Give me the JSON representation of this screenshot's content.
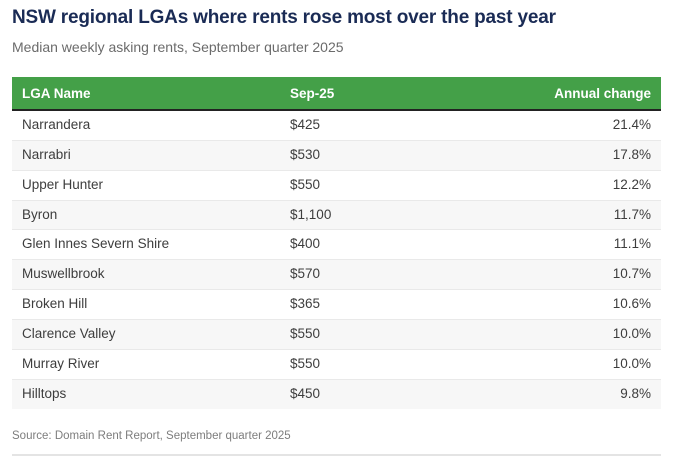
{
  "header": {
    "title": "NSW regional LGAs where rents rose most over the past year",
    "subtitle": "Median weekly asking rents, September quarter 2025"
  },
  "table": {
    "columns": {
      "lga": "LGA Name",
      "rent": "Sep-25",
      "change": "Annual change"
    },
    "rows": [
      {
        "lga": "Narrandera",
        "rent": "$425",
        "change": "21.4%"
      },
      {
        "lga": "Narrabri",
        "rent": "$530",
        "change": "17.8%"
      },
      {
        "lga": "Upper Hunter",
        "rent": "$550",
        "change": "12.2%"
      },
      {
        "lga": "Byron",
        "rent": "$1,100",
        "change": "11.7%"
      },
      {
        "lga": "Glen Innes Severn Shire",
        "rent": "$400",
        "change": "11.1%"
      },
      {
        "lga": "Muswellbrook",
        "rent": "$570",
        "change": "10.7%"
      },
      {
        "lga": "Broken Hill",
        "rent": "$365",
        "change": "10.6%"
      },
      {
        "lga": "Clarence Valley",
        "rent": "$550",
        "change": "10.0%"
      },
      {
        "lga": "Murray River",
        "rent": "$550",
        "change": "10.0%"
      },
      {
        "lga": "Hilltops",
        "rent": "$450",
        "change": "9.8%"
      }
    ]
  },
  "footer": {
    "source": "Source: Domain Rent Report, September quarter 2025"
  },
  "colors": {
    "header_bg": "#44a048",
    "header_text": "#ffffff",
    "header_underline": "#222222",
    "title_navy": "#1a2b55",
    "subtitle_gray": "#6b6b6b",
    "row_stripe": "#f7f7f7",
    "body_text": "#3d3d3d",
    "source_gray": "#7d7d7d"
  },
  "chart_data": {
    "type": "table",
    "title": "NSW regional LGAs where rents rose most over the past year",
    "subtitle": "Median weekly asking rents, September quarter 2025",
    "columns": [
      "LGA Name",
      "Sep-25",
      "Annual change"
    ],
    "rows": [
      {
        "lga": "Narrandera",
        "median_weekly_rent_aud": 425,
        "annual_change_pct": 21.4
      },
      {
        "lga": "Narrabri",
        "median_weekly_rent_aud": 530,
        "annual_change_pct": 17.8
      },
      {
        "lga": "Upper Hunter",
        "median_weekly_rent_aud": 550,
        "annual_change_pct": 12.2
      },
      {
        "lga": "Byron",
        "median_weekly_rent_aud": 1100,
        "annual_change_pct": 11.7
      },
      {
        "lga": "Glen Innes Severn Shire",
        "median_weekly_rent_aud": 400,
        "annual_change_pct": 11.1
      },
      {
        "lga": "Muswellbrook",
        "median_weekly_rent_aud": 570,
        "annual_change_pct": 10.7
      },
      {
        "lga": "Broken Hill",
        "median_weekly_rent_aud": 365,
        "annual_change_pct": 10.6
      },
      {
        "lga": "Clarence Valley",
        "median_weekly_rent_aud": 550,
        "annual_change_pct": 10.0
      },
      {
        "lga": "Murray River",
        "median_weekly_rent_aud": 550,
        "annual_change_pct": 10.0
      },
      {
        "lga": "Hilltops",
        "median_weekly_rent_aud": 450,
        "annual_change_pct": 9.8
      }
    ],
    "source": "Source: Domain Rent Report, September quarter 2025"
  }
}
